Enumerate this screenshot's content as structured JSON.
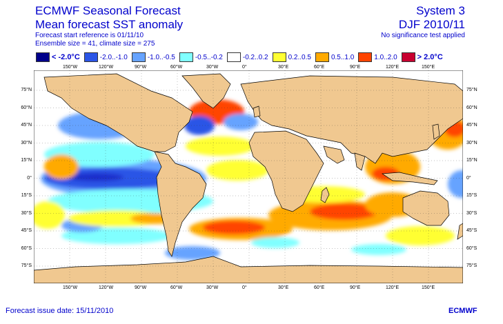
{
  "header": {
    "title_left_1": "ECMWF Seasonal Forecast",
    "title_left_2": "Mean forecast SST anomaly",
    "meta_1": "Forecast start reference is 01/11/10",
    "meta_2": "Ensemble size = 41, climate size = 275",
    "title_right_1": "System 3",
    "title_right_2": "DJF 2010/11",
    "meta_right": "No significance test applied"
  },
  "legend": [
    {
      "label": "< -2.0°C",
      "color": "#00008b"
    },
    {
      "label": "-2.0..-1.0",
      "color": "#2b55e6"
    },
    {
      "label": "-1.0..-0.5",
      "color": "#66a3ff"
    },
    {
      "label": "-0.5..-0.2",
      "color": "#80ffff"
    },
    {
      "label": "-0.2..0.2",
      "color": "#ffffff"
    },
    {
      "label": "0.2..0.5",
      "color": "#ffff33"
    },
    {
      "label": "0.5..1.0",
      "color": "#ffaa00"
    },
    {
      "label": "1.0..2.0",
      "color": "#ff4400"
    },
    {
      "label": "> 2.0°C",
      "color": "#c80030"
    }
  ],
  "lon_labels": [
    "150°W",
    "120°W",
    "90°W",
    "60°W",
    "30°W",
    "0°",
    "30°E",
    "60°E",
    "90°E",
    "120°E",
    "150°E"
  ],
  "lat_labels": [
    "75°N",
    "60°N",
    "45°N",
    "30°N",
    "15°N",
    "0°",
    "15°S",
    "30°S",
    "45°S",
    "60°S",
    "75°S"
  ],
  "colors": {
    "land": "#f0c890",
    "ocean": "#ffffff",
    "coast": "#000000"
  },
  "footer": {
    "issue": "Forecast issue date: 15/11/2010",
    "logo": "ECMWF"
  }
}
